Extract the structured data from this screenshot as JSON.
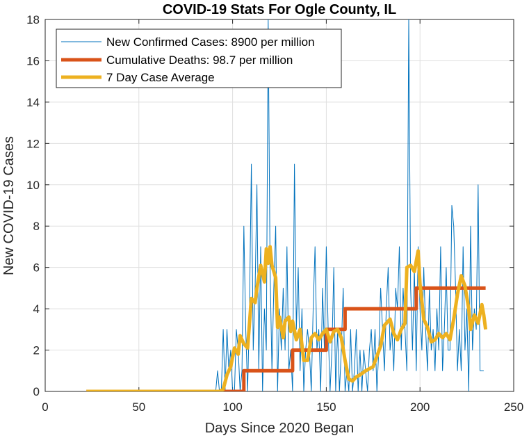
{
  "chart_data": {
    "type": "line",
    "title": "COVID-19 Stats For Ogle County, IL",
    "xlabel": "Days Since 2020 Began",
    "ylabel": "New COVID-19 Cases",
    "xlim": [
      0,
      250
    ],
    "ylim": [
      0,
      18
    ],
    "xticks": [
      0,
      50,
      100,
      150,
      200,
      250
    ],
    "yticks": [
      0,
      2,
      4,
      6,
      8,
      10,
      12,
      14,
      16,
      18
    ],
    "xtick_labels": [
      "0",
      "50",
      "100",
      "150",
      "200",
      "250"
    ],
    "ytick_labels": [
      "0",
      "2",
      "4",
      "6",
      "8",
      "10",
      "12",
      "14",
      "16",
      "18"
    ],
    "grid": true,
    "legend_position": "top-left",
    "series": [
      {
        "name": "New Confirmed Cases: 8900 per million",
        "color": "#0072BD",
        "line_width": "thin",
        "x_start": 91,
        "values": [
          0,
          1,
          0,
          0,
          3,
          0,
          3,
          1,
          2,
          0,
          0,
          3,
          2,
          0,
          1,
          8,
          3,
          0,
          4,
          11,
          2,
          5,
          10,
          1,
          7,
          0,
          4,
          2,
          18,
          6,
          1,
          5,
          8,
          0,
          4,
          2,
          5,
          2,
          7,
          1,
          2,
          0,
          11,
          3,
          6,
          1,
          4,
          0,
          2,
          3,
          2,
          0,
          4,
          7,
          2,
          3,
          0,
          5,
          2,
          7,
          3,
          0,
          2,
          6,
          0,
          3,
          0,
          2,
          5,
          0,
          1,
          0,
          3,
          0,
          1,
          3,
          0,
          2,
          0,
          2,
          1,
          0,
          2,
          3,
          1,
          3,
          0,
          2,
          5,
          3,
          1,
          4,
          6,
          2,
          3,
          1,
          5,
          4,
          7,
          2,
          5,
          3,
          1,
          18,
          5,
          2,
          6,
          1,
          7,
          4,
          2,
          6,
          3,
          1,
          5,
          2,
          3,
          1,
          4,
          2,
          7,
          1,
          3,
          6,
          2,
          2,
          9,
          8,
          5,
          1,
          3,
          1,
          7,
          2,
          4,
          0,
          8,
          2,
          4,
          3,
          10,
          1,
          1,
          1
        ]
      },
      {
        "name": "Cumulative Deaths: 98.7 per million",
        "color": "#D95319",
        "line_width": "thick",
        "points": [
          [
            22,
            0
          ],
          [
            106,
            0
          ],
          [
            106,
            1
          ],
          [
            132,
            1
          ],
          [
            132,
            2
          ],
          [
            150,
            2
          ],
          [
            150,
            3
          ],
          [
            160,
            3
          ],
          [
            160,
            4
          ],
          [
            198,
            4
          ],
          [
            198,
            5
          ],
          [
            235,
            5
          ]
        ]
      },
      {
        "name": "7 Day Case Average",
        "color": "#EDB120",
        "line_width": "thick",
        "points": [
          [
            22,
            0
          ],
          [
            93,
            0
          ],
          [
            95,
            0.1
          ],
          [
            97,
            0.8
          ],
          [
            99,
            1.2
          ],
          [
            101,
            2.1
          ],
          [
            103,
            1.8
          ],
          [
            104,
            2.7
          ],
          [
            106,
            2.3
          ],
          [
            108,
            2.1
          ],
          [
            110,
            4.5
          ],
          [
            112,
            4.3
          ],
          [
            113,
            5.0
          ],
          [
            115,
            6.1
          ],
          [
            117,
            5.3
          ],
          [
            118,
            6.9
          ],
          [
            119,
            6.2
          ],
          [
            120,
            7.0
          ],
          [
            121,
            6.1
          ],
          [
            123,
            5.5
          ],
          [
            124,
            3.1
          ],
          [
            125,
            3.6
          ],
          [
            127,
            2.6
          ],
          [
            128,
            3.4
          ],
          [
            130,
            3.6
          ],
          [
            131,
            2.9
          ],
          [
            132,
            3.4
          ],
          [
            134,
            2.5
          ],
          [
            136,
            3.0
          ],
          [
            138,
            1.5
          ],
          [
            140,
            1.5
          ],
          [
            142,
            2.6
          ],
          [
            144,
            2.8
          ],
          [
            146,
            2.5
          ],
          [
            148,
            2.8
          ],
          [
            150,
            3.0
          ],
          [
            152,
            2.4
          ],
          [
            154,
            2.9
          ],
          [
            156,
            3.0
          ],
          [
            158,
            2.6
          ],
          [
            160,
            1.5
          ],
          [
            162,
            0.6
          ],
          [
            164,
            0.5
          ],
          [
            166,
            0.7
          ],
          [
            168,
            0.8
          ],
          [
            171,
            1.0
          ],
          [
            173,
            1.1
          ],
          [
            175,
            1.2
          ],
          [
            177,
            1.7
          ],
          [
            179,
            2.2
          ],
          [
            181,
            3.2
          ],
          [
            184,
            3.5
          ],
          [
            186,
            2.8
          ],
          [
            188,
            2.5
          ],
          [
            190,
            3.0
          ],
          [
            192,
            3.3
          ],
          [
            193,
            6.0
          ],
          [
            195,
            6.1
          ],
          [
            197,
            5.8
          ],
          [
            199,
            6.8
          ],
          [
            200,
            5.2
          ],
          [
            202,
            3.5
          ],
          [
            204,
            3.1
          ],
          [
            206,
            2.4
          ],
          [
            208,
            2.5
          ],
          [
            210,
            2.8
          ],
          [
            212,
            2.6
          ],
          [
            214,
            2.8
          ],
          [
            216,
            2.5
          ],
          [
            218,
            3.5
          ],
          [
            220,
            4.7
          ],
          [
            222,
            5.6
          ],
          [
            224,
            5.1
          ],
          [
            226,
            4.0
          ],
          [
            227,
            3.0
          ],
          [
            229,
            3.7
          ],
          [
            231,
            3.3
          ],
          [
            233,
            4.2
          ],
          [
            234,
            3.7
          ],
          [
            235,
            3.0
          ]
        ]
      }
    ]
  }
}
